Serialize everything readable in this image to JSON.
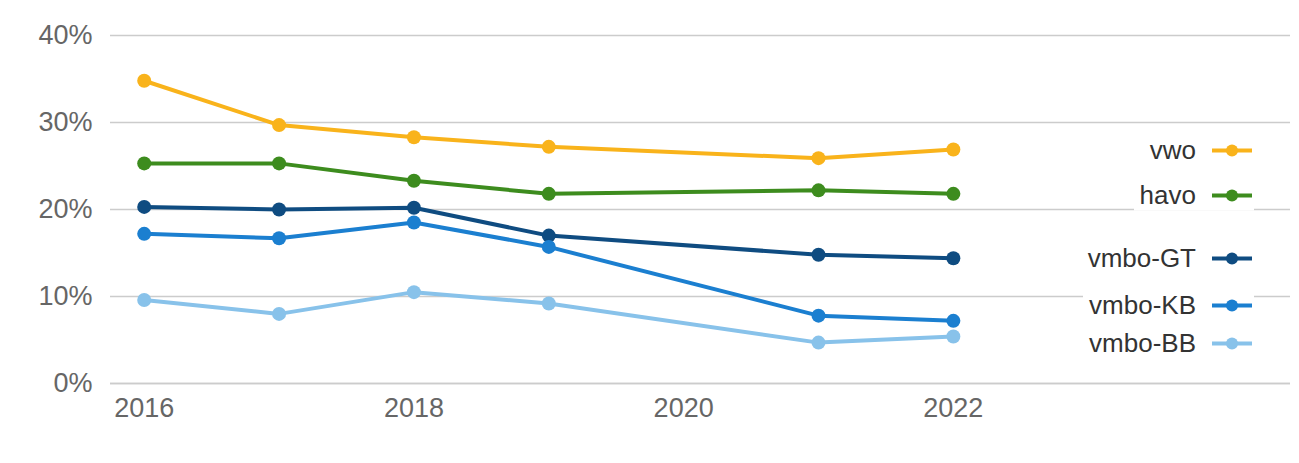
{
  "chart_data": {
    "type": "line",
    "x": [
      2016,
      2017,
      2018,
      2019,
      2021,
      2022
    ],
    "series": [
      {
        "name": "vwo",
        "color": "#f9b31b",
        "values": [
          34.8,
          29.7,
          28.3,
          27.2,
          25.9,
          26.9
        ]
      },
      {
        "name": "havo",
        "color": "#3d8c1e",
        "values": [
          25.3,
          25.3,
          23.3,
          21.8,
          22.2,
          21.8
        ]
      },
      {
        "name": "vmbo-GT",
        "color": "#0f4c81",
        "values": [
          20.3,
          20.0,
          20.2,
          17.0,
          14.8,
          14.4
        ]
      },
      {
        "name": "vmbo-KB",
        "color": "#1b7fd0",
        "values": [
          17.2,
          16.7,
          18.5,
          15.7,
          7.8,
          7.2
        ]
      },
      {
        "name": "vmbo-BB",
        "color": "#88c2ea",
        "values": [
          9.6,
          8.0,
          10.5,
          9.2,
          4.7,
          5.4
        ]
      }
    ],
    "xlim": [
      2015.75,
      2024.5
    ],
    "xticks": [
      2016,
      2018,
      2020,
      2022
    ],
    "ylim": [
      0,
      40
    ],
    "yticks": [
      {
        "value": 0,
        "label": "0%"
      },
      {
        "value": 10,
        "label": "10%"
      },
      {
        "value": 20,
        "label": "20%"
      },
      {
        "value": 30,
        "label": "30%"
      },
      {
        "value": 40,
        "label": "40%"
      }
    ],
    "grid": true,
    "legend": "right",
    "marker": "circle"
  }
}
